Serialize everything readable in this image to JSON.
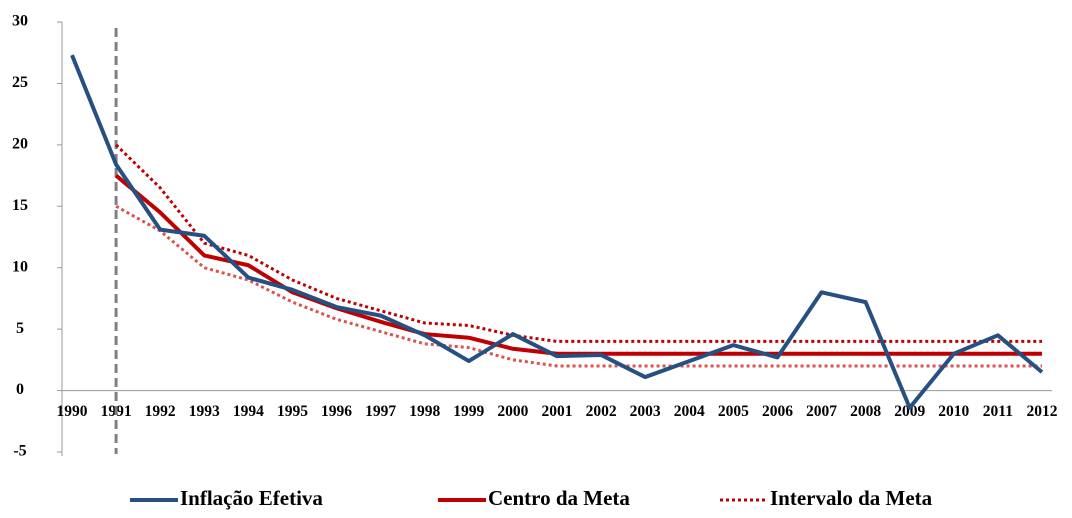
{
  "chart_data": {
    "type": "line",
    "categories": [
      "1990",
      "1991",
      "1992",
      "1993",
      "1994",
      "1995",
      "1996",
      "1997",
      "1998",
      "1999",
      "2000",
      "2001",
      "2002",
      "2003",
      "2004",
      "2005",
      "2006",
      "2007",
      "2008",
      "2009",
      "2010",
      "2011",
      "2012"
    ],
    "ylim": [
      -5,
      30
    ],
    "yticks": [
      -5,
      0,
      5,
      10,
      15,
      20,
      25,
      30
    ],
    "reference_x": "1991",
    "series": [
      {
        "name": "Inflação Efetiva",
        "color": "#264f82",
        "style": "solid",
        "values": [
          27.3,
          18.4,
          13.1,
          12.6,
          9.2,
          8.2,
          6.8,
          6.1,
          4.5,
          2.4,
          4.6,
          2.8,
          2.9,
          1.1,
          2.4,
          3.7,
          2.7,
          8.0,
          7.2,
          -1.4,
          3.0,
          4.5,
          1.5
        ]
      },
      {
        "name": "Centro da Meta",
        "color": "#c00000",
        "style": "solid",
        "values": [
          null,
          17.5,
          14.5,
          11.0,
          10.2,
          8.0,
          6.7,
          5.6,
          4.6,
          4.3,
          3.4,
          3.0,
          3.0,
          3.0,
          3.0,
          3.0,
          3.0,
          3.0,
          3.0,
          3.0,
          3.0,
          3.0,
          3.0
        ]
      },
      {
        "name": "Intervalo da Meta",
        "color": "#c00000",
        "lower_color": "#d9534f",
        "style": "dotted",
        "upper": [
          null,
          20.0,
          16.5,
          12.0,
          11.0,
          9.0,
          7.5,
          6.5,
          5.5,
          5.3,
          4.5,
          4.0,
          4.0,
          4.0,
          4.0,
          4.0,
          4.0,
          4.0,
          4.0,
          4.0,
          4.0,
          4.0,
          4.0
        ],
        "lower": [
          null,
          15.0,
          13.0,
          10.0,
          9.0,
          7.2,
          5.8,
          4.8,
          3.8,
          3.5,
          2.5,
          2.0,
          2.0,
          2.0,
          2.0,
          2.0,
          2.0,
          2.0,
          2.0,
          2.0,
          2.0,
          2.0,
          2.0
        ]
      }
    ]
  }
}
